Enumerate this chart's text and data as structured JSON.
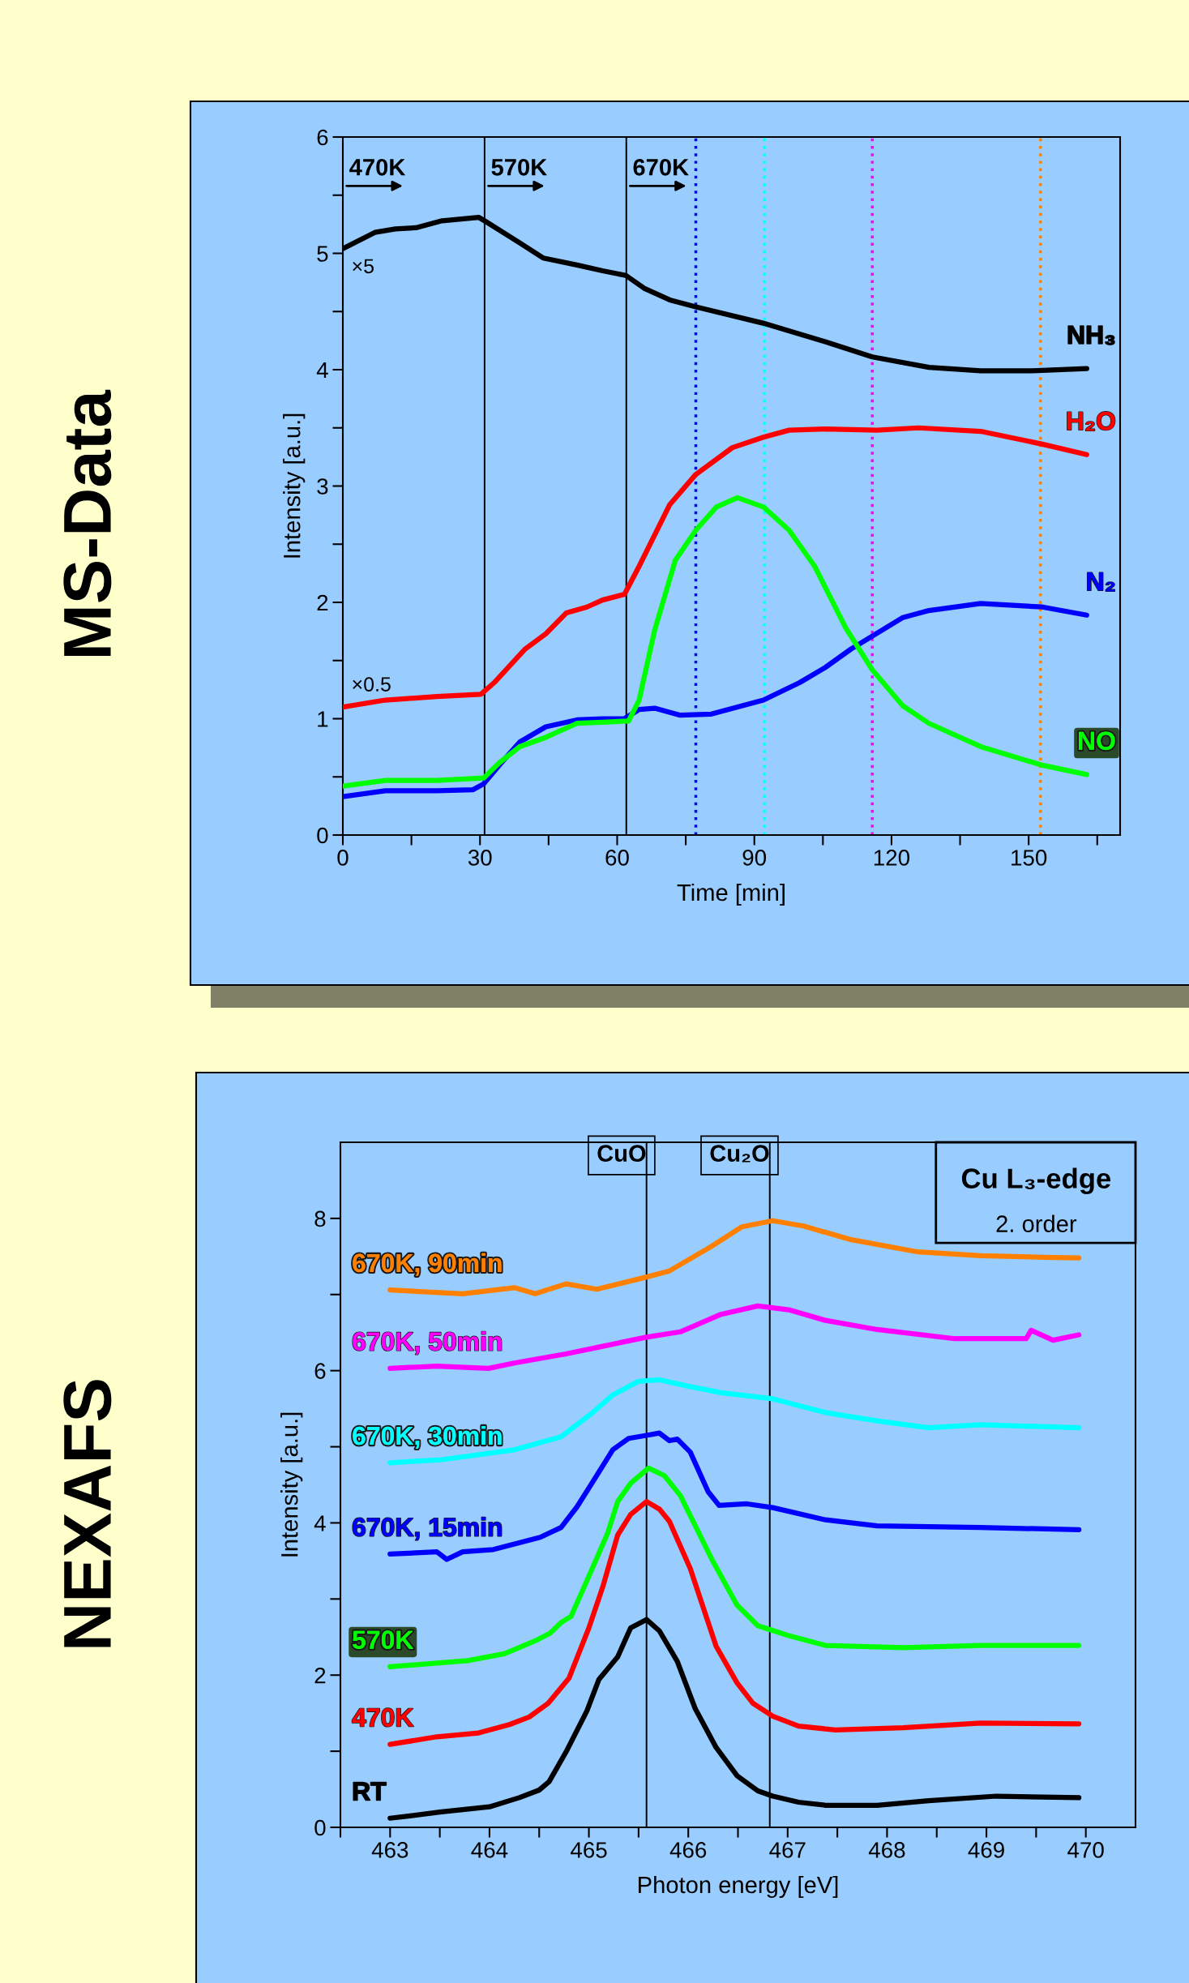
{
  "chart_data": [
    {
      "type": "line",
      "title": "MS-Data",
      "xlabel": "Time [min]",
      "ylabel": "Intensity [a.u.]",
      "xlim": [
        0,
        170
      ],
      "ylim": [
        0,
        6
      ],
      "xticks": [
        0,
        {
          "value": 15,
          "label": null
        },
        30,
        {
          "value": 45,
          "label": null
        },
        60,
        {
          "value": 75,
          "label": null
        },
        90,
        {
          "value": 105,
          "label": null
        },
        120,
        {
          "value": 135,
          "label": null
        },
        150,
        {
          "value": 165,
          "label": null
        }
      ],
      "yticks": [
        0,
        {
          "value": 0.5,
          "label": null
        },
        1,
        {
          "value": 1.5,
          "label": null
        },
        2,
        {
          "value": 2.5,
          "label": null
        },
        3,
        {
          "value": 3.5,
          "label": null
        },
        4,
        {
          "value": 4.5,
          "label": null
        },
        5,
        {
          "value": 5.5,
          "label": null
        },
        6
      ],
      "grid": false,
      "legend": false,
      "line_style": "solid",
      "marker": "none",
      "series": [
        {
          "name": "NH₃",
          "color": "#000000",
          "x": [
            0,
            7,
            11.5,
            16,
            21.7,
            29.7,
            31.4,
            38.7,
            43.8,
            51.2,
            56.8,
            61.9,
            65.9,
            71.5,
            77.2,
            91.9,
            105.5,
            115.8,
            128.2,
            139.5,
            150.8,
            162.7
          ],
          "values": [
            5.04,
            5.18,
            5.21,
            5.22,
            5.28,
            5.31,
            5.27,
            5.09,
            4.96,
            4.9,
            4.85,
            4.81,
            4.7,
            4.6,
            4.54,
            4.4,
            4.24,
            4.11,
            4.02,
            3.99,
            3.99,
            4.01
          ]
        },
        {
          "name": "H₂O",
          "color": "#ff0000",
          "x": [
            0,
            9.3,
            20.6,
            30.2,
            33.1,
            39.9,
            44.4,
            48.9,
            53.4,
            56.8,
            61.6,
            64.8,
            71.5,
            77.2,
            85.2,
            92,
            97.6,
            105.5,
            116.8,
            125.9,
            139.5,
            153,
            162.7
          ],
          "values": [
            1.1,
            1.16,
            1.19,
            1.21,
            1.31,
            1.6,
            1.73,
            1.91,
            1.96,
            2.02,
            2.07,
            2.31,
            2.84,
            3.1,
            3.33,
            3.42,
            3.48,
            3.49,
            3.48,
            3.5,
            3.47,
            3.36,
            3.27
          ]
        },
        {
          "name": "N₂",
          "color": "#0000ff",
          "x": [
            0,
            9.3,
            20.6,
            28.5,
            30.8,
            34.2,
            38.7,
            44.4,
            51.2,
            56.8,
            61.6,
            64.8,
            68.2,
            73.8,
            80.6,
            92,
            99.9,
            105.5,
            111.2,
            115.8,
            122.5,
            128.2,
            139.5,
            153,
            162.7
          ],
          "values": [
            0.33,
            0.38,
            0.38,
            0.39,
            0.44,
            0.6,
            0.8,
            0.93,
            0.99,
            1.0,
            1.0,
            1.08,
            1.09,
            1.03,
            1.04,
            1.16,
            1.31,
            1.44,
            1.6,
            1.71,
            1.87,
            1.93,
            1.99,
            1.96,
            1.89
          ]
        },
        {
          "name": "NO",
          "color": "#00ff00",
          "x": [
            0,
            9.3,
            20.6,
            30.8,
            34.2,
            38.7,
            44.4,
            51.2,
            56.8,
            62.5,
            64.8,
            68.2,
            72.7,
            77.2,
            81.7,
            86.3,
            92,
            97.6,
            103.2,
            110,
            115.8,
            122.5,
            128.2,
            139.5,
            153,
            162.7
          ],
          "values": [
            0.42,
            0.47,
            0.47,
            0.49,
            0.62,
            0.76,
            0.84,
            0.96,
            0.97,
            0.98,
            1.16,
            1.76,
            2.36,
            2.62,
            2.82,
            2.9,
            2.82,
            2.62,
            2.31,
            1.78,
            1.42,
            1.11,
            0.96,
            0.76,
            0.6,
            0.52
          ]
        }
      ],
      "ref_lines": [
        {
          "axis": "x",
          "value": 0,
          "label": "470K",
          "color": "#000000",
          "line_style": "solid"
        },
        {
          "axis": "x",
          "value": 31,
          "label": "570K",
          "color": "#000000",
          "line_style": "solid"
        },
        {
          "axis": "x",
          "value": 62,
          "label": "670K",
          "color": "#000000",
          "line_style": "solid"
        },
        {
          "axis": "x",
          "value": 77.2,
          "color": "#0000ff",
          "line_style": "dotted"
        },
        {
          "axis": "x",
          "value": 92.2,
          "color": "#00ffff",
          "line_style": "dotted"
        },
        {
          "axis": "x",
          "value": 115.8,
          "color": "#ff00ff",
          "line_style": "dotted"
        },
        {
          "axis": "x",
          "value": 152.6,
          "color": "#ff8000",
          "line_style": "dotted"
        }
      ],
      "annotations": [
        "×5",
        "×0.5"
      ]
    },
    {
      "type": "line",
      "title": "NEXAFS",
      "xlabel": "Photon energy [eV]",
      "ylabel": "Intensity [a.u.]",
      "xlim": [
        462.5,
        470.5
      ],
      "ylim": [
        0,
        9
      ],
      "xticks": [
        {
          "value": 462.5,
          "label": null
        },
        463,
        {
          "value": 463.5,
          "label": null
        },
        464,
        {
          "value": 464.5,
          "label": null
        },
        465,
        {
          "value": 465.5,
          "label": null
        },
        466,
        {
          "value": 466.5,
          "label": null
        },
        467,
        {
          "value": 467.5,
          "label": null
        },
        468,
        {
          "value": 468.5,
          "label": null
        },
        469,
        {
          "value": 469.5,
          "label": null
        },
        470
      ],
      "yticks": [
        0,
        {
          "value": 1,
          "label": null
        },
        2,
        {
          "value": 3,
          "label": null
        },
        4,
        {
          "value": 5,
          "label": null
        },
        6,
        {
          "value": 7,
          "label": null
        },
        8
      ],
      "grid": false,
      "legend": false,
      "line_style": "solid",
      "marker": "none",
      "series": [
        {
          "name": "RT",
          "color": "#000000",
          "x": [
            463,
            463.2,
            463.5,
            464,
            464.3,
            464.5,
            464.6,
            464.77,
            464.98,
            465.1,
            465.29,
            465.42,
            465.58,
            465.71,
            465.89,
            466.07,
            466.28,
            466.49,
            466.7,
            466.85,
            467.11,
            467.38,
            467.9,
            468.42,
            469.1,
            469.93
          ],
          "values": [
            0.12,
            0.15,
            0.2,
            0.27,
            0.39,
            0.49,
            0.6,
            0.99,
            1.53,
            1.94,
            2.24,
            2.62,
            2.73,
            2.58,
            2.18,
            1.56,
            1.05,
            0.68,
            0.48,
            0.41,
            0.33,
            0.29,
            0.29,
            0.35,
            0.41,
            0.39
          ]
        },
        {
          "name": "470K",
          "color": "#ff0000",
          "x": [
            463,
            463.47,
            463.89,
            464.2,
            464.4,
            464.59,
            464.8,
            465,
            465.14,
            465.29,
            465.42,
            465.58,
            465.71,
            465.81,
            466.02,
            466.28,
            466.49,
            466.65,
            466.85,
            467.11,
            467.48,
            468.16,
            468.94,
            469.93
          ],
          "values": [
            1.09,
            1.19,
            1.24,
            1.35,
            1.45,
            1.63,
            1.96,
            2.62,
            3.16,
            3.84,
            4.11,
            4.28,
            4.18,
            4.02,
            3.4,
            2.38,
            1.9,
            1.63,
            1.46,
            1.33,
            1.28,
            1.31,
            1.37,
            1.36
          ]
        },
        {
          "name": "570K",
          "color": "#00ff00",
          "x": [
            463,
            463.78,
            464.15,
            464.46,
            464.61,
            464.72,
            464.82,
            465,
            465.19,
            465.29,
            465.42,
            465.6,
            465.76,
            465.92,
            466.23,
            466.49,
            466.7,
            467.01,
            467.38,
            468.16,
            468.94,
            469.93
          ],
          "values": [
            2.11,
            2.19,
            2.28,
            2.45,
            2.55,
            2.69,
            2.77,
            3.3,
            3.87,
            4.28,
            4.52,
            4.72,
            4.62,
            4.36,
            3.54,
            2.92,
            2.65,
            2.52,
            2.39,
            2.36,
            2.39,
            2.39
          ]
        },
        {
          "name": "670K, 15min",
          "color": "#0000ff",
          "x": [
            463,
            463.47,
            463.57,
            463.73,
            464.04,
            464.51,
            464.72,
            464.88,
            465.03,
            465.24,
            465.4,
            465.58,
            465.71,
            465.81,
            465.89,
            466.02,
            466.2,
            466.31,
            466.59,
            466.85,
            467.38,
            467.9,
            468.94,
            469.93
          ],
          "values": [
            3.59,
            3.62,
            3.52,
            3.62,
            3.65,
            3.81,
            3.94,
            4.21,
            4.52,
            4.96,
            5.11,
            5.15,
            5.18,
            5.08,
            5.1,
            4.93,
            4.41,
            4.23,
            4.25,
            4.2,
            4.04,
            3.96,
            3.94,
            3.91
          ]
        },
        {
          "name": "670K, 30min",
          "color": "#00ffff",
          "x": [
            463,
            463.52,
            464.25,
            464.72,
            465.03,
            465.24,
            465.5,
            465.71,
            466.02,
            466.33,
            466.85,
            467.38,
            467.9,
            468.42,
            468.94,
            469.93
          ],
          "values": [
            4.79,
            4.83,
            4.96,
            5.13,
            5.44,
            5.68,
            5.86,
            5.88,
            5.79,
            5.71,
            5.63,
            5.45,
            5.34,
            5.25,
            5.29,
            5.25
          ]
        },
        {
          "name": "670K, 50min",
          "color": "#ff00ff",
          "x": [
            463,
            463.47,
            463.99,
            464.25,
            464.77,
            465.14,
            465.58,
            465.92,
            466.33,
            466.7,
            467.01,
            467.38,
            467.9,
            468.68,
            469.4,
            469.45,
            469.67,
            469.93
          ],
          "values": [
            6.03,
            6.06,
            6.03,
            6.1,
            6.22,
            6.32,
            6.44,
            6.51,
            6.74,
            6.85,
            6.8,
            6.66,
            6.54,
            6.42,
            6.42,
            6.53,
            6.4,
            6.47
          ]
        },
        {
          "name": "670K, 90min",
          "color": "#ff8000",
          "x": [
            463,
            463.73,
            464.25,
            464.46,
            464.77,
            465.08,
            465.55,
            465.81,
            466.23,
            466.54,
            466.85,
            467.16,
            467.64,
            468.31,
            468.94,
            469.56,
            469.93
          ],
          "values": [
            7.06,
            7.01,
            7.09,
            7.01,
            7.14,
            7.07,
            7.22,
            7.31,
            7.63,
            7.89,
            7.97,
            7.9,
            7.72,
            7.56,
            7.51,
            7.49,
            7.48
          ]
        }
      ],
      "ref_lines": [
        {
          "axis": "x",
          "value": 465.58,
          "label": "CuO",
          "color": "#000000",
          "line_style": "solid"
        },
        {
          "axis": "x",
          "value": 466.82,
          "label": "Cu₂O",
          "color": "#000000",
          "line_style": "solid"
        }
      ],
      "annotations": [
        "Cu L₃-edge",
        "2. order"
      ]
    }
  ]
}
